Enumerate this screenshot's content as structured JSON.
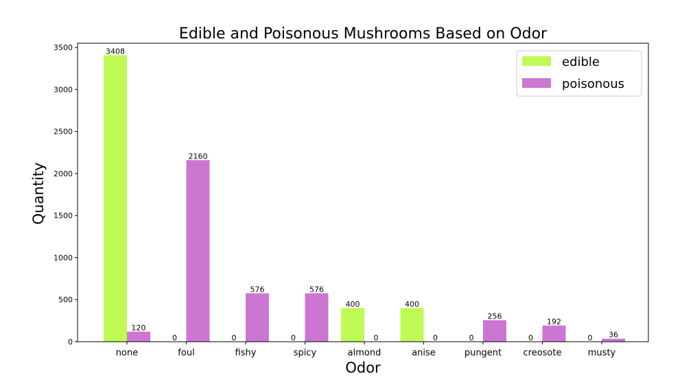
{
  "chart_data": {
    "type": "bar",
    "title": "Edible and Poisonous Mushrooms Based on Odor",
    "xlabel": "Odor",
    "ylabel": "Quantity",
    "categories": [
      "none",
      "foul",
      "fishy",
      "spicy",
      "almond",
      "anise",
      "pungent",
      "creosote",
      "musty"
    ],
    "series": [
      {
        "name": "edible",
        "color": "#c0fa55",
        "values": [
          3408,
          0,
          0,
          0,
          400,
          400,
          0,
          0,
          0
        ]
      },
      {
        "name": "poisonous",
        "color": "#cc76d1",
        "values": [
          120,
          2160,
          576,
          576,
          0,
          0,
          256,
          192,
          36
        ]
      }
    ],
    "ylim": [
      0,
      3550
    ],
    "yticks": [
      0,
      500,
      1000,
      1500,
      2000,
      2500,
      3000,
      3500
    ],
    "grid": false,
    "legend_position": "top-right"
  }
}
